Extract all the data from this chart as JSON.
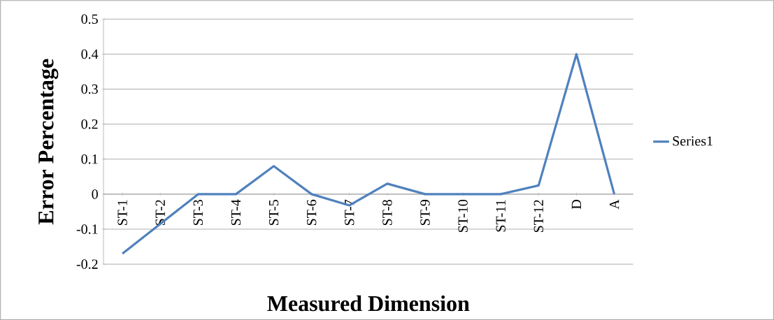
{
  "chart_data": {
    "type": "line",
    "xlabel": "Measured Dimension",
    "ylabel": "Error Percentage",
    "categories": [
      "ST-1",
      "ST-2",
      "ST-3",
      "ST-4",
      "ST-5",
      "ST-6",
      "ST-7",
      "ST-8",
      "ST-9",
      "ST-10",
      "ST-11",
      "ST-12",
      "D",
      "A"
    ],
    "series": [
      {
        "name": "Series1",
        "color": "#4f81bd",
        "values": [
          -0.17,
          -0.085,
          0,
          0,
          0.08,
          0,
          -0.032,
          0.03,
          0,
          0,
          0,
          0.025,
          0.4,
          0
        ]
      }
    ],
    "ylim": [
      -0.2,
      0.5
    ],
    "yticks": [
      -0.2,
      -0.1,
      0,
      0.1,
      0.2,
      0.3,
      0.4,
      0.5
    ],
    "grid": "y",
    "legend": "right",
    "marker": "none",
    "line_style": "solid"
  }
}
